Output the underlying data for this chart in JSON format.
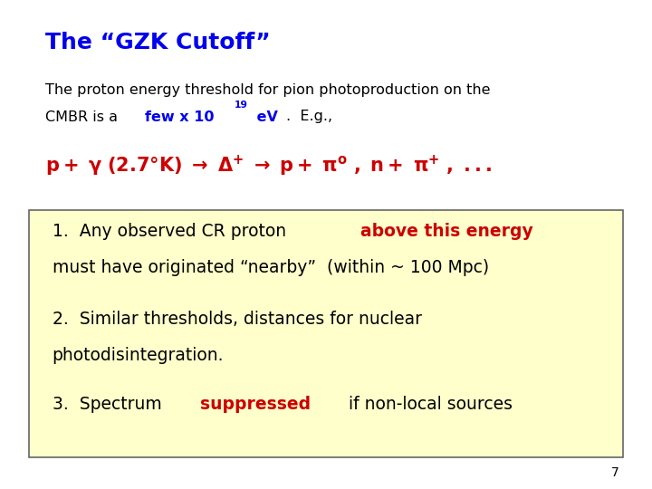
{
  "title": "The “GZK Cutoff”",
  "title_color": "#0000EE",
  "title_fontsize": 18,
  "bg_color": "#FFFFFF",
  "subtitle_line1": "The proton energy threshold for pion photoproduction on the",
  "subtitle_color": "#000000",
  "highlight_color": "#0000EE",
  "reaction_color": "#CC0000",
  "reaction_fontsize": 15,
  "box_bg_color": "#FFFFCC",
  "box_edge_color": "#666666",
  "item1_plain": "1.  Any observed CR proton ",
  "item1_highlight": "above this energy",
  "item1_line2": "must have originated “nearby”  (within ~ 100 Mpc)",
  "item2_line1": "2.  Similar thresholds, distances for nuclear",
  "item2_line2": "photodisintegration.",
  "item3_plain": "3.  Spectrum ",
  "item3_highlight": "suppressed",
  "item3_plain2": " if non-local sources",
  "item_color": "#000000",
  "item_highlight_color": "#CC0000",
  "page_number": "7",
  "body_fontsize": 11.5,
  "item_fontsize": 13.5
}
